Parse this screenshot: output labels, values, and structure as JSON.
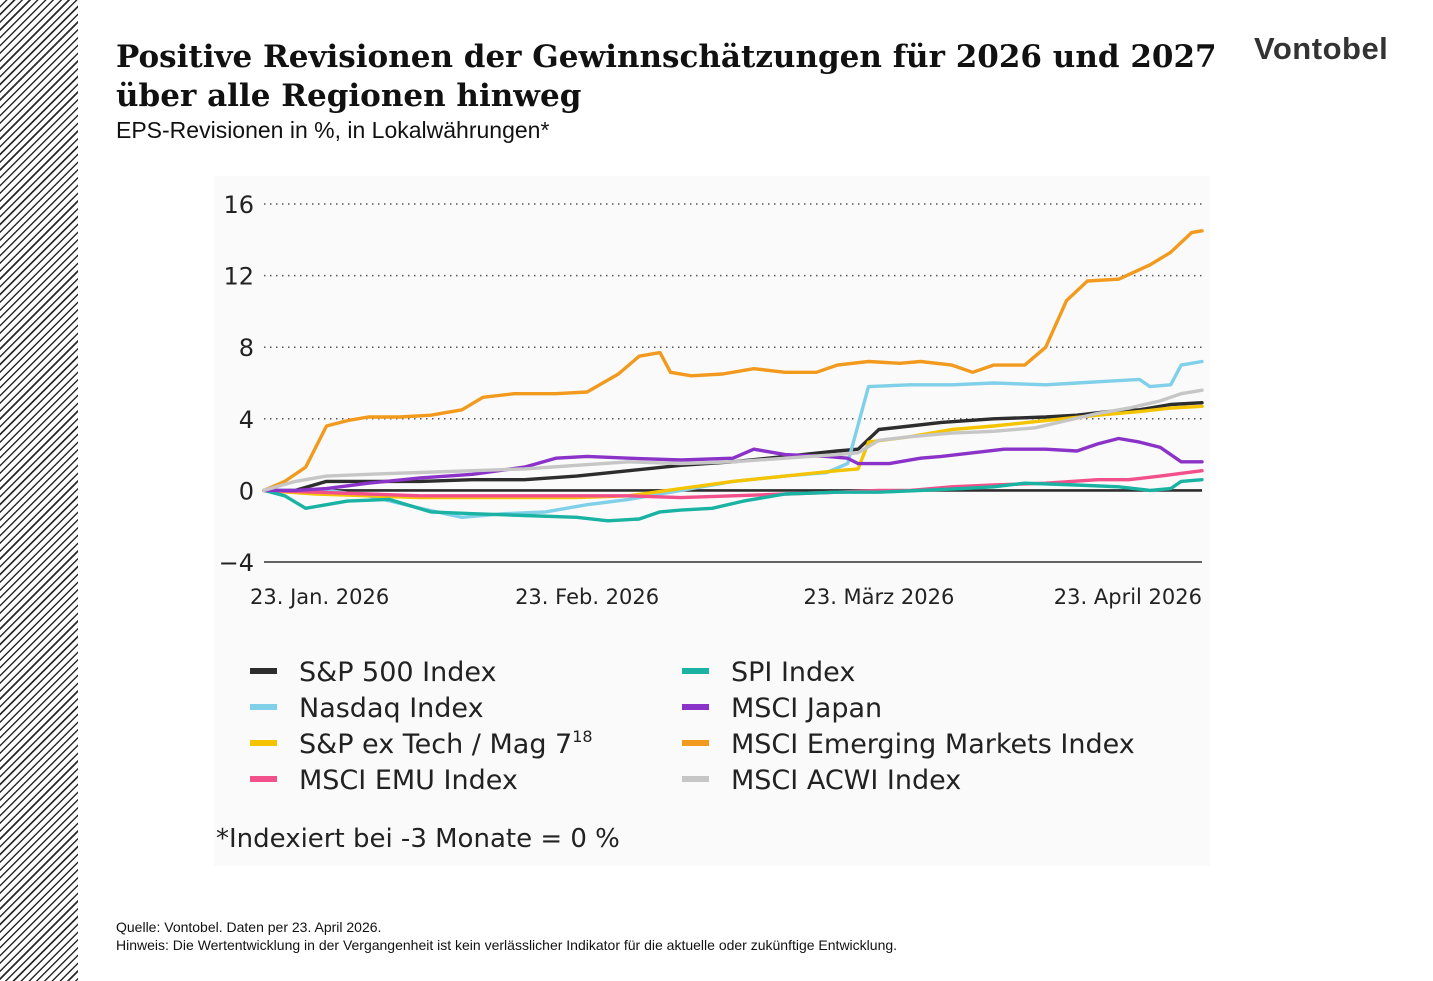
{
  "header": {
    "title": "Positive Revisionen der Gewinnschätzungen für 2026 und 2027 über alle Regionen hinweg",
    "subtitle": "EPS-Revisionen in %, in Lokalwährungen*",
    "brand": "Vontobel"
  },
  "footer": {
    "source": "Quelle: Vontobel. Daten per 23. April 2026.",
    "note": "Hinweis: Die Wertentwicklung in der Vergangenheit ist kein verlässlicher Indikator für die aktuelle oder zukünftige Entwicklung."
  },
  "chart_data": {
    "type": "line",
    "title": "",
    "xlabel": "",
    "ylabel": "",
    "ylim": [
      -4,
      16
    ],
    "yticks": [
      "16",
      "12",
      "8",
      "4",
      "0",
      "−4"
    ],
    "xlim": [
      0,
      90
    ],
    "xticks": [
      {
        "label": "23. Jan. 2026",
        "x": 0
      },
      {
        "label": "23. Feb. 2026",
        "x": 31
      },
      {
        "label": "23. März 2026",
        "x": 59
      },
      {
        "label": "23. April 2026",
        "x": 90
      }
    ],
    "x_unit": "days since 23. Jan. 2026",
    "grid": "horizontal dotted",
    "legend_position": "bottom, two columns",
    "footnote": "*Indexiert bei -3 Monate = 0 %",
    "series": [
      {
        "name": "S&P 500 Index",
        "color": "#2d2d2d",
        "points": [
          [
            0,
            0
          ],
          [
            3,
            0
          ],
          [
            6,
            0.5
          ],
          [
            10,
            0.5
          ],
          [
            15,
            0.5
          ],
          [
            20,
            0.6
          ],
          [
            25,
            0.6
          ],
          [
            30,
            0.8
          ],
          [
            35,
            1.1
          ],
          [
            40,
            1.4
          ],
          [
            45,
            1.6
          ],
          [
            50,
            1.9
          ],
          [
            55,
            2.2
          ],
          [
            57,
            2.3
          ],
          [
            59,
            3.4
          ],
          [
            62,
            3.6
          ],
          [
            65,
            3.8
          ],
          [
            70,
            4.0
          ],
          [
            75,
            4.1
          ],
          [
            78,
            4.2
          ],
          [
            81,
            4.4
          ],
          [
            84,
            4.5
          ],
          [
            87,
            4.8
          ],
          [
            90,
            4.9
          ]
        ]
      },
      {
        "name": "Nasdaq Index",
        "color": "#7fd0e8",
        "points": [
          [
            0,
            0
          ],
          [
            3,
            0
          ],
          [
            6,
            0
          ],
          [
            10,
            -0.3
          ],
          [
            15,
            -1.0
          ],
          [
            19,
            -1.5
          ],
          [
            23,
            -1.3
          ],
          [
            27,
            -1.2
          ],
          [
            31,
            -0.8
          ],
          [
            35,
            -0.5
          ],
          [
            40,
            0
          ],
          [
            45,
            0.5
          ],
          [
            50,
            0.8
          ],
          [
            54,
            1.0
          ],
          [
            56,
            1.5
          ],
          [
            58,
            5.8
          ],
          [
            62,
            5.9
          ],
          [
            66,
            5.9
          ],
          [
            70,
            6.0
          ],
          [
            75,
            5.9
          ],
          [
            78,
            6.0
          ],
          [
            81,
            6.1
          ],
          [
            84,
            6.2
          ],
          [
            85,
            5.8
          ],
          [
            87,
            5.9
          ],
          [
            88,
            7.0
          ],
          [
            90,
            7.2
          ]
        ]
      },
      {
        "name": "S&P ex Tech / Mag 7",
        "name_sup": "18",
        "color": "#f5c400",
        "points": [
          [
            0,
            0
          ],
          [
            5,
            -0.2
          ],
          [
            10,
            -0.3
          ],
          [
            15,
            -0.4
          ],
          [
            20,
            -0.4
          ],
          [
            25,
            -0.4
          ],
          [
            30,
            -0.4
          ],
          [
            35,
            -0.3
          ],
          [
            40,
            0.1
          ],
          [
            45,
            0.5
          ],
          [
            50,
            0.8
          ],
          [
            55,
            1.1
          ],
          [
            57,
            1.2
          ],
          [
            58,
            2.7
          ],
          [
            62,
            3.0
          ],
          [
            66,
            3.4
          ],
          [
            70,
            3.6
          ],
          [
            75,
            3.9
          ],
          [
            80,
            4.2
          ],
          [
            84,
            4.4
          ],
          [
            87,
            4.6
          ],
          [
            90,
            4.7
          ]
        ]
      },
      {
        "name": "MSCI EMU Index",
        "color": "#f2508a",
        "points": [
          [
            0,
            0
          ],
          [
            5,
            -0.1
          ],
          [
            10,
            -0.2
          ],
          [
            15,
            -0.3
          ],
          [
            20,
            -0.3
          ],
          [
            25,
            -0.3
          ],
          [
            30,
            -0.3
          ],
          [
            35,
            -0.3
          ],
          [
            40,
            -0.4
          ],
          [
            45,
            -0.3
          ],
          [
            50,
            -0.2
          ],
          [
            55,
            -0.1
          ],
          [
            59,
            0
          ],
          [
            62,
            0
          ],
          [
            66,
            0.2
          ],
          [
            70,
            0.3
          ],
          [
            75,
            0.4
          ],
          [
            80,
            0.6
          ],
          [
            83,
            0.6
          ],
          [
            86,
            0.8
          ],
          [
            90,
            1.1
          ]
        ]
      },
      {
        "name": "SPI Index",
        "color": "#1ab3a3",
        "points": [
          [
            0,
            0
          ],
          [
            2,
            -0.3
          ],
          [
            4,
            -1.0
          ],
          [
            6,
            -0.8
          ],
          [
            8,
            -0.6
          ],
          [
            12,
            -0.5
          ],
          [
            16,
            -1.2
          ],
          [
            20,
            -1.3
          ],
          [
            25,
            -1.4
          ],
          [
            30,
            -1.5
          ],
          [
            33,
            -1.7
          ],
          [
            36,
            -1.6
          ],
          [
            38,
            -1.2
          ],
          [
            40,
            -1.1
          ],
          [
            43,
            -1.0
          ],
          [
            46,
            -0.6
          ],
          [
            50,
            -0.2
          ],
          [
            55,
            -0.1
          ],
          [
            59,
            -0.1
          ],
          [
            63,
            0
          ],
          [
            67,
            0.1
          ],
          [
            70,
            0.2
          ],
          [
            73,
            0.4
          ],
          [
            78,
            0.3
          ],
          [
            82,
            0.2
          ],
          [
            85,
            0
          ],
          [
            87,
            0.1
          ],
          [
            88,
            0.5
          ],
          [
            90,
            0.6
          ]
        ]
      },
      {
        "name": "MSCI Japan",
        "color": "#8b33c8",
        "points": [
          [
            0,
            0
          ],
          [
            3,
            0
          ],
          [
            6,
            0.1
          ],
          [
            10,
            0.4
          ],
          [
            15,
            0.7
          ],
          [
            20,
            0.9
          ],
          [
            25,
            1.3
          ],
          [
            28,
            1.8
          ],
          [
            31,
            1.9
          ],
          [
            35,
            1.8
          ],
          [
            40,
            1.7
          ],
          [
            45,
            1.8
          ],
          [
            47,
            2.3
          ],
          [
            50,
            2.0
          ],
          [
            54,
            1.9
          ],
          [
            56,
            1.8
          ],
          [
            57,
            1.5
          ],
          [
            60,
            1.5
          ],
          [
            63,
            1.8
          ],
          [
            65,
            1.9
          ],
          [
            68,
            2.1
          ],
          [
            71,
            2.3
          ],
          [
            75,
            2.3
          ],
          [
            78,
            2.2
          ],
          [
            80,
            2.6
          ],
          [
            82,
            2.9
          ],
          [
            84,
            2.7
          ],
          [
            86,
            2.4
          ],
          [
            88,
            1.6
          ],
          [
            90,
            1.6
          ]
        ]
      },
      {
        "name": "MSCI Emerging Markets Index",
        "color": "#f29a1e",
        "points": [
          [
            0,
            0
          ],
          [
            2,
            0.5
          ],
          [
            4,
            1.3
          ],
          [
            6,
            3.6
          ],
          [
            8,
            3.9
          ],
          [
            10,
            4.1
          ],
          [
            13,
            4.1
          ],
          [
            16,
            4.2
          ],
          [
            19,
            4.5
          ],
          [
            21,
            5.2
          ],
          [
            24,
            5.4
          ],
          [
            28,
            5.4
          ],
          [
            31,
            5.5
          ],
          [
            34,
            6.5
          ],
          [
            36,
            7.5
          ],
          [
            38,
            7.7
          ],
          [
            39,
            6.6
          ],
          [
            41,
            6.4
          ],
          [
            44,
            6.5
          ],
          [
            47,
            6.8
          ],
          [
            50,
            6.6
          ],
          [
            53,
            6.6
          ],
          [
            55,
            7.0
          ],
          [
            58,
            7.2
          ],
          [
            61,
            7.1
          ],
          [
            63,
            7.2
          ],
          [
            66,
            7.0
          ],
          [
            68,
            6.6
          ],
          [
            70,
            7.0
          ],
          [
            73,
            7.0
          ],
          [
            75,
            8.0
          ],
          [
            77,
            10.6
          ],
          [
            79,
            11.7
          ],
          [
            82,
            11.8
          ],
          [
            85,
            12.6
          ],
          [
            87,
            13.3
          ],
          [
            89,
            14.4
          ],
          [
            90,
            14.5
          ]
        ]
      },
      {
        "name": "MSCI ACWI Index",
        "color": "#c6c6c6",
        "points": [
          [
            0,
            0
          ],
          [
            3,
            0.5
          ],
          [
            6,
            0.8
          ],
          [
            10,
            0.9
          ],
          [
            15,
            1.0
          ],
          [
            20,
            1.1
          ],
          [
            25,
            1.2
          ],
          [
            30,
            1.4
          ],
          [
            35,
            1.6
          ],
          [
            40,
            1.5
          ],
          [
            45,
            1.6
          ],
          [
            50,
            1.8
          ],
          [
            55,
            2.0
          ],
          [
            57,
            2.1
          ],
          [
            59,
            2.8
          ],
          [
            62,
            3.0
          ],
          [
            66,
            3.2
          ],
          [
            70,
            3.3
          ],
          [
            74,
            3.5
          ],
          [
            77,
            3.9
          ],
          [
            80,
            4.3
          ],
          [
            83,
            4.6
          ],
          [
            86,
            5.0
          ],
          [
            88,
            5.4
          ],
          [
            90,
            5.6
          ]
        ]
      }
    ]
  }
}
